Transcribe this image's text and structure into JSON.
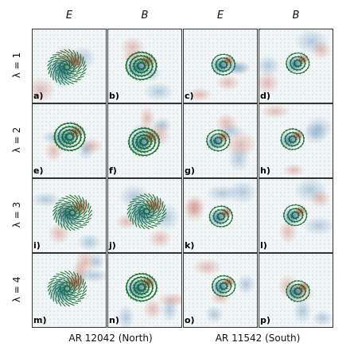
{
  "column_headers": [
    "E",
    "B",
    "E",
    "B"
  ],
  "row_headers": [
    "λ = 1",
    "λ = 2",
    "λ = 3",
    "λ = 4"
  ],
  "group_labels": [
    "AR 12042 (North)",
    "AR 11542 (South)"
  ],
  "panels": [
    {
      "label": "a)",
      "style": "ring"
    },
    {
      "label": "b)",
      "style": "swirl"
    },
    {
      "label": "c)",
      "style": "compact"
    },
    {
      "label": "d)",
      "style": "compact"
    },
    {
      "label": "e)",
      "style": "swirl"
    },
    {
      "label": "f)",
      "style": "swirl"
    },
    {
      "label": "g)",
      "style": "compact"
    },
    {
      "label": "h)",
      "style": "compact"
    },
    {
      "label": "i)",
      "style": "ring"
    },
    {
      "label": "j)",
      "style": "ring"
    },
    {
      "label": "k)",
      "style": "compact"
    },
    {
      "label": "l)",
      "style": "compact"
    },
    {
      "label": "m)",
      "style": "ring"
    },
    {
      "label": "n)",
      "style": "swirl"
    },
    {
      "label": "o)",
      "style": "compact"
    },
    {
      "label": "p)",
      "style": "compact"
    }
  ],
  "colors": {
    "positive": "#c0392b",
    "negative": "#2e6fa8",
    "vector": "#0d6b26",
    "frame": "#333333"
  }
}
